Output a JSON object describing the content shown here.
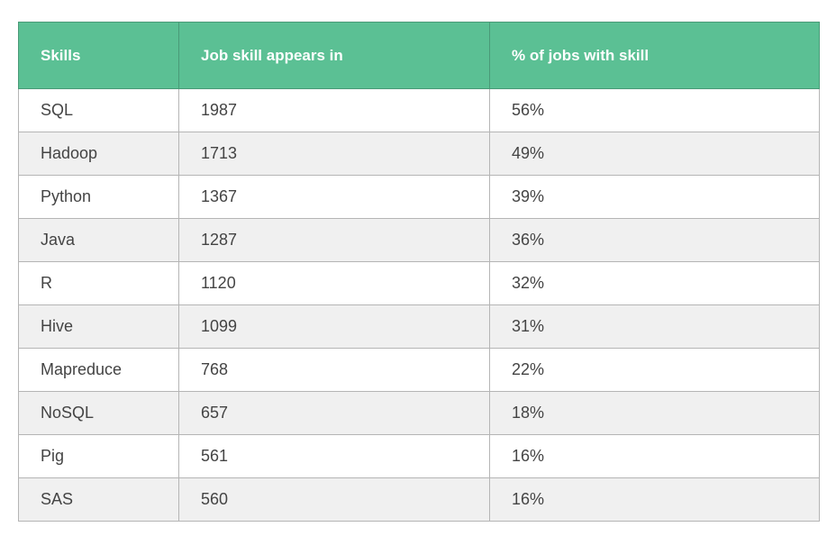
{
  "chart_data": {
    "type": "table",
    "columns": [
      "Skills",
      "Job skill appears in",
      "% of jobs with skill"
    ],
    "rows": [
      {
        "skill": "SQL",
        "count": "1987",
        "percent": "56%"
      },
      {
        "skill": "Hadoop",
        "count": "1713",
        "percent": "49%"
      },
      {
        "skill": "Python",
        "count": "1367",
        "percent": "39%"
      },
      {
        "skill": "Java",
        "count": "1287",
        "percent": "36%"
      },
      {
        "skill": "R",
        "count": "1120",
        "percent": "32%"
      },
      {
        "skill": "Hive",
        "count": "1099",
        "percent": "31%"
      },
      {
        "skill": "Mapreduce",
        "count": "768",
        "percent": "22%"
      },
      {
        "skill": "NoSQL",
        "count": "657",
        "percent": "18%"
      },
      {
        "skill": "Pig",
        "count": "561",
        "percent": "16%"
      },
      {
        "skill": "SAS",
        "count": "560",
        "percent": "16%"
      }
    ]
  },
  "colors": {
    "header_background": "#5bc094",
    "header_text": "#ffffff",
    "stripe_background": "#f0f0f0",
    "cell_text": "#444444"
  }
}
